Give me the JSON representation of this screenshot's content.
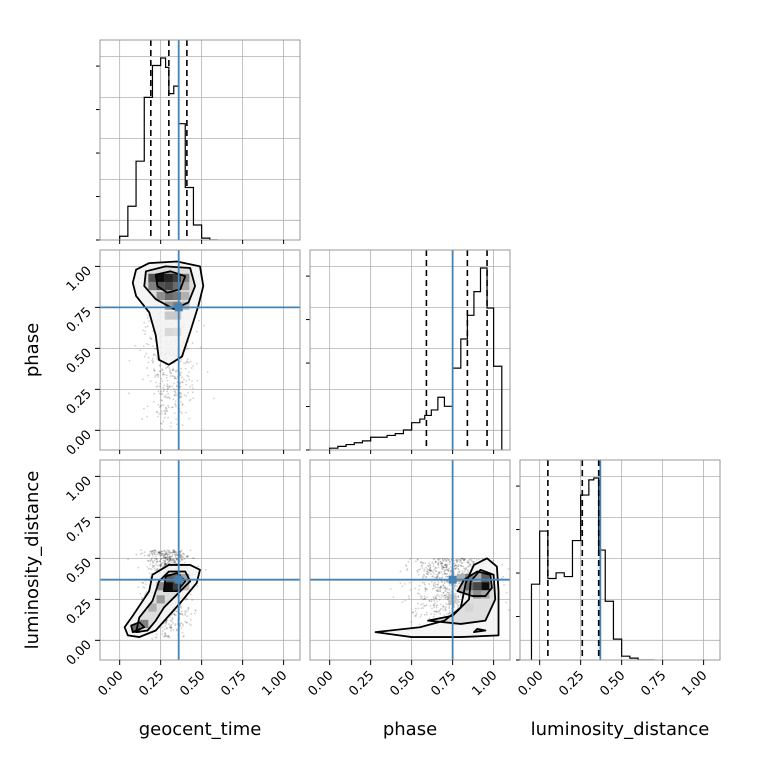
{
  "chart_data": {
    "type": "corner",
    "parameters": [
      "geocent_time",
      "phase",
      "luminosity_distance"
    ],
    "axis_range": [
      -0.12,
      1.1
    ],
    "ticks": [
      0.0,
      0.25,
      0.5,
      0.75,
      1.0
    ],
    "tick_labels": [
      "0.00",
      "0.25",
      "0.50",
      "0.75",
      "1.00"
    ],
    "grid": true,
    "colors": {
      "truth": "#4682b4",
      "hist": "#000000",
      "density": "#000000"
    },
    "truths": {
      "geocent_time": 0.36,
      "phase": 0.75,
      "luminosity_distance": 0.37
    },
    "quantiles": {
      "geocent_time": [
        0.19,
        0.3,
        0.41
      ],
      "phase": [
        0.59,
        0.84,
        0.96
      ],
      "luminosity_distance": [
        0.05,
        0.26,
        0.36
      ]
    },
    "histograms": {
      "geocent_time": {
        "bin_edges": [
          0.0,
          0.05,
          0.1,
          0.15,
          0.2,
          0.25,
          0.28,
          0.3,
          0.33,
          0.36,
          0.4,
          0.45,
          0.5,
          0.55,
          0.6
        ],
        "counts": [
          0.02,
          0.18,
          0.42,
          0.76,
          0.93,
          0.97,
          0.92,
          0.78,
          0.82,
          0.62,
          0.28,
          0.08,
          0.01,
          0.0
        ]
      },
      "phase": {
        "bin_edges": [
          0.0,
          0.05,
          0.1,
          0.15,
          0.2,
          0.25,
          0.3,
          0.35,
          0.4,
          0.45,
          0.5,
          0.55,
          0.58,
          0.62,
          0.66,
          0.7,
          0.75,
          0.8,
          0.84,
          0.88,
          0.92,
          0.96,
          1.0,
          1.05
        ],
        "counts": [
          0.01,
          0.02,
          0.03,
          0.04,
          0.05,
          0.07,
          0.07,
          0.08,
          0.09,
          0.11,
          0.15,
          0.17,
          0.19,
          0.22,
          0.29,
          0.24,
          0.45,
          0.61,
          0.74,
          0.87,
          1.0,
          0.78,
          0.46
        ]
      },
      "luminosity_distance": {
        "bin_edges": [
          -0.05,
          0.0,
          0.05,
          0.1,
          0.15,
          0.2,
          0.25,
          0.3,
          0.33,
          0.36,
          0.4,
          0.45,
          0.5,
          0.55,
          0.6,
          0.65,
          0.7
        ],
        "counts": [
          0.4,
          0.68,
          0.43,
          0.46,
          0.44,
          0.63,
          0.87,
          0.95,
          0.96,
          0.58,
          0.31,
          0.11,
          0.02,
          0.01,
          0.0,
          0.0
        ]
      }
    },
    "density_2d": [
      {
        "x": "geocent_time",
        "y": "phase",
        "contours": [
          [
            [
              0.1,
              0.98
            ],
            [
              0.18,
              1.02
            ],
            [
              0.35,
              1.03
            ],
            [
              0.49,
              1.0
            ],
            [
              0.51,
              0.88
            ],
            [
              0.48,
              0.76
            ],
            [
              0.43,
              0.6
            ],
            [
              0.38,
              0.45
            ],
            [
              0.3,
              0.4
            ],
            [
              0.24,
              0.43
            ],
            [
              0.22,
              0.58
            ],
            [
              0.18,
              0.72
            ],
            [
              0.1,
              0.82
            ],
            [
              0.08,
              0.9
            ]
          ],
          [
            [
              0.16,
              0.97
            ],
            [
              0.28,
              1.0
            ],
            [
              0.43,
              0.99
            ],
            [
              0.46,
              0.88
            ],
            [
              0.42,
              0.78
            ],
            [
              0.33,
              0.74
            ],
            [
              0.22,
              0.8
            ],
            [
              0.15,
              0.88
            ]
          ],
          [
            [
              0.22,
              0.95
            ],
            [
              0.31,
              0.97
            ],
            [
              0.4,
              0.94
            ],
            [
              0.37,
              0.86
            ],
            [
              0.29,
              0.84
            ],
            [
              0.23,
              0.88
            ]
          ]
        ],
        "cells": [
          {
            "x": 0.2,
            "y": 0.93,
            "v": 0.65
          },
          {
            "x": 0.25,
            "y": 0.93,
            "v": 0.95
          },
          {
            "x": 0.3,
            "y": 0.93,
            "v": 0.85
          },
          {
            "x": 0.35,
            "y": 0.93,
            "v": 0.75
          },
          {
            "x": 0.4,
            "y": 0.93,
            "v": 0.45
          },
          {
            "x": 0.2,
            "y": 0.88,
            "v": 0.45
          },
          {
            "x": 0.25,
            "y": 0.88,
            "v": 0.65
          },
          {
            "x": 0.3,
            "y": 0.88,
            "v": 0.7
          },
          {
            "x": 0.35,
            "y": 0.88,
            "v": 0.55
          },
          {
            "x": 0.4,
            "y": 0.88,
            "v": 0.3
          },
          {
            "x": 0.25,
            "y": 0.82,
            "v": 0.4
          },
          {
            "x": 0.3,
            "y": 0.82,
            "v": 0.55
          },
          {
            "x": 0.35,
            "y": 0.82,
            "v": 0.5
          },
          {
            "x": 0.4,
            "y": 0.82,
            "v": 0.25
          },
          {
            "x": 0.3,
            "y": 0.76,
            "v": 0.35
          },
          {
            "x": 0.35,
            "y": 0.76,
            "v": 0.45
          },
          {
            "x": 0.4,
            "y": 0.76,
            "v": 0.2
          },
          {
            "x": 0.3,
            "y": 0.7,
            "v": 0.15
          },
          {
            "x": 0.35,
            "y": 0.7,
            "v": 0.15
          },
          {
            "x": 0.3,
            "y": 0.6,
            "v": 0.08
          },
          {
            "x": 0.35,
            "y": 0.6,
            "v": 0.06
          }
        ],
        "scatter_region": {
          "x_center": 0.3,
          "x_spread": 0.12,
          "y_min": 0.0,
          "y_max": 1.0
        }
      },
      {
        "x": "geocent_time",
        "y": "luminosity_distance",
        "contours": [
          [
            [
              0.05,
              0.03
            ],
            [
              0.12,
              0.02
            ],
            [
              0.22,
              0.06
            ],
            [
              0.3,
              0.15
            ],
            [
              0.38,
              0.24
            ],
            [
              0.47,
              0.35
            ],
            [
              0.49,
              0.43
            ],
            [
              0.43,
              0.46
            ],
            [
              0.3,
              0.46
            ],
            [
              0.2,
              0.4
            ],
            [
              0.18,
              0.3
            ],
            [
              0.08,
              0.15
            ],
            [
              0.03,
              0.08
            ]
          ],
          [
            [
              0.1,
              0.05
            ],
            [
              0.17,
              0.06
            ],
            [
              0.22,
              0.12
            ],
            [
              0.27,
              0.2
            ],
            [
              0.35,
              0.28
            ],
            [
              0.43,
              0.36
            ],
            [
              0.4,
              0.42
            ],
            [
              0.3,
              0.42
            ],
            [
              0.24,
              0.36
            ],
            [
              0.2,
              0.24
            ],
            [
              0.12,
              0.14
            ]
          ],
          [
            [
              0.27,
              0.3
            ],
            [
              0.35,
              0.3
            ],
            [
              0.4,
              0.36
            ],
            [
              0.35,
              0.41
            ],
            [
              0.28,
              0.39
            ]
          ],
          [
            [
              0.08,
              0.05
            ],
            [
              0.15,
              0.08
            ],
            [
              0.12,
              0.11
            ],
            [
              0.07,
              0.09
            ]
          ]
        ],
        "cells": [
          {
            "x": 0.3,
            "y": 0.33,
            "v": 0.95
          },
          {
            "x": 0.35,
            "y": 0.33,
            "v": 0.75
          },
          {
            "x": 0.3,
            "y": 0.38,
            "v": 0.6
          },
          {
            "x": 0.35,
            "y": 0.38,
            "v": 0.55
          },
          {
            "x": 0.25,
            "y": 0.33,
            "v": 0.4
          },
          {
            "x": 0.25,
            "y": 0.25,
            "v": 0.35
          },
          {
            "x": 0.2,
            "y": 0.2,
            "v": 0.25
          },
          {
            "x": 0.15,
            "y": 0.1,
            "v": 0.45
          },
          {
            "x": 0.1,
            "y": 0.07,
            "v": 0.55
          },
          {
            "x": 0.4,
            "y": 0.38,
            "v": 0.3
          },
          {
            "x": 0.4,
            "y": 0.33,
            "v": 0.2
          }
        ],
        "scatter_region": {
          "x_center": 0.3,
          "x_spread": 0.11,
          "y_min": 0.0,
          "y_max": 0.55
        }
      },
      {
        "x": "phase",
        "y": "luminosity_distance",
        "contours": [
          [
            [
              0.28,
              0.05
            ],
            [
              0.55,
              0.08
            ],
            [
              0.7,
              0.12
            ],
            [
              0.8,
              0.2
            ],
            [
              0.83,
              0.35
            ],
            [
              0.88,
              0.46
            ],
            [
              0.96,
              0.5
            ],
            [
              1.02,
              0.45
            ],
            [
              1.03,
              0.3
            ],
            [
              1.03,
              0.03
            ],
            [
              0.8,
              0.02
            ],
            [
              0.5,
              0.02
            ]
          ],
          [
            [
              0.6,
              0.12
            ],
            [
              0.75,
              0.15
            ],
            [
              0.85,
              0.25
            ],
            [
              0.86,
              0.36
            ],
            [
              0.92,
              0.43
            ],
            [
              1.0,
              0.4
            ],
            [
              1.01,
              0.25
            ],
            [
              0.95,
              0.12
            ],
            [
              0.8,
              0.1
            ]
          ],
          [
            [
              0.78,
              0.3
            ],
            [
              0.82,
              0.37
            ],
            [
              0.9,
              0.42
            ],
            [
              0.98,
              0.4
            ],
            [
              0.99,
              0.32
            ],
            [
              0.95,
              0.27
            ],
            [
              0.87,
              0.27
            ]
          ],
          [
            [
              0.88,
              0.05
            ],
            [
              0.95,
              0.06
            ],
            [
              0.9,
              0.07
            ]
          ]
        ],
        "cells": [
          {
            "x": 0.95,
            "y": 0.33,
            "v": 0.95
          },
          {
            "x": 0.9,
            "y": 0.33,
            "v": 0.7
          },
          {
            "x": 0.95,
            "y": 0.38,
            "v": 0.6
          },
          {
            "x": 0.85,
            "y": 0.38,
            "v": 0.45
          },
          {
            "x": 0.85,
            "y": 0.33,
            "v": 0.55
          },
          {
            "x": 0.9,
            "y": 0.28,
            "v": 0.4
          },
          {
            "x": 0.8,
            "y": 0.38,
            "v": 0.25
          },
          {
            "x": 0.95,
            "y": 0.28,
            "v": 0.3
          },
          {
            "x": 0.75,
            "y": 0.25,
            "v": 0.15
          },
          {
            "x": 0.85,
            "y": 0.2,
            "v": 0.1
          }
        ],
        "scatter_region": {
          "x_center": 0.75,
          "x_spread": 0.2,
          "y_min": 0.0,
          "y_max": 0.5
        }
      }
    ]
  }
}
